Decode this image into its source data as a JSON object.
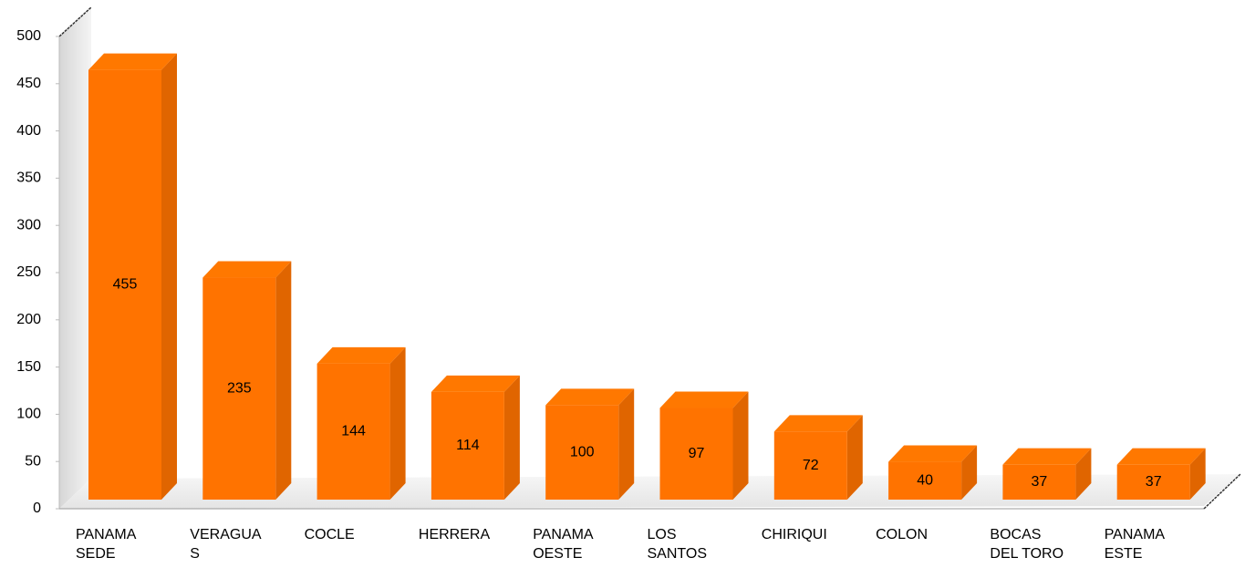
{
  "chart_data": {
    "type": "bar3d",
    "categories": [
      "PANAMA\nSEDE",
      "VERAGUA\nS",
      "COCLE",
      "HERRERA",
      "PANAMA\nOESTE",
      "LOS\nSANTOS",
      "CHIRIQUI",
      "COLON",
      "BOCAS\nDEL TORO",
      "PANAMA\nESTE"
    ],
    "values": [
      455,
      235,
      144,
      114,
      100,
      97,
      72,
      40,
      37,
      37
    ],
    "color": "#ff7300",
    "ylim": [
      0,
      500
    ],
    "yticks": [
      0,
      50,
      100,
      150,
      200,
      250,
      300,
      350,
      400,
      450,
      500
    ]
  }
}
